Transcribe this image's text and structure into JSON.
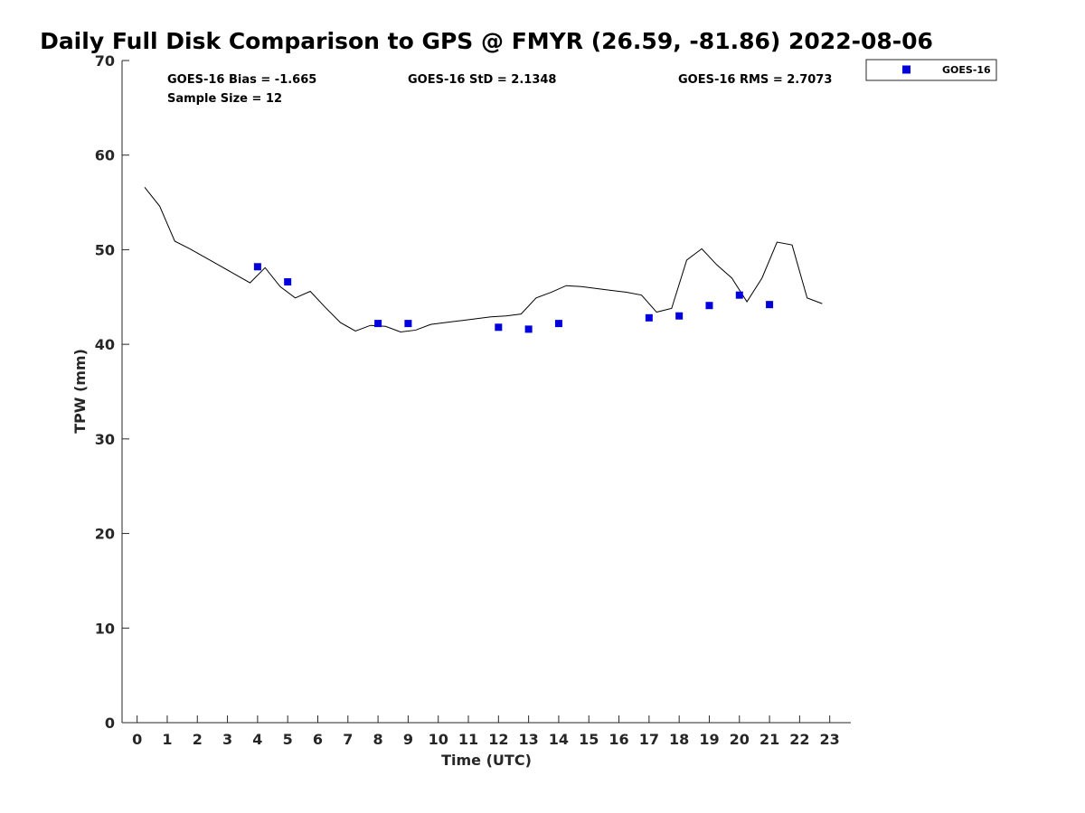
{
  "chart_data": {
    "type": "scatter",
    "title": "Daily Full Disk Comparison to GPS @ FMYR (26.59, -81.86) 2022-08-06",
    "xlabel": "Time (UTC)",
    "ylabel": "TPW (mm)",
    "xlim": [
      -0.5,
      23.7
    ],
    "ylim": [
      0,
      70
    ],
    "x_ticks": [
      0,
      1,
      2,
      3,
      4,
      5,
      6,
      7,
      8,
      9,
      10,
      11,
      12,
      13,
      14,
      15,
      16,
      17,
      18,
      19,
      20,
      21,
      22,
      23
    ],
    "y_ticks": [
      0,
      10,
      20,
      30,
      40,
      50,
      60,
      70
    ],
    "grid": false,
    "legend": {
      "position": "top-right-outside",
      "entries": [
        "GOES-16"
      ]
    },
    "stats": {
      "bias": "GOES-16 Bias = -1.665",
      "std": "GOES-16 StD = 2.1348",
      "rms": "GOES-16 RMS = 2.7073",
      "sample": "Sample Size = 12"
    },
    "series": [
      {
        "name": "GOES-16",
        "type": "scatter",
        "marker": "square",
        "color": "#0000dd",
        "x": [
          4,
          5,
          8,
          9,
          12,
          13,
          14,
          17,
          18,
          19,
          20,
          21
        ],
        "y": [
          48.2,
          46.6,
          42.2,
          42.2,
          41.8,
          41.6,
          42.2,
          42.8,
          43.0,
          44.1,
          45.2,
          44.2
        ]
      },
      {
        "type": "line",
        "color": "#000000",
        "x": [
          0.25,
          0.75,
          1.25,
          1.75,
          2.25,
          2.75,
          3.25,
          3.75,
          4.25,
          4.75,
          5.25,
          5.75,
          6.25,
          6.75,
          7.25,
          7.75,
          8.25,
          8.75,
          9.25,
          9.75,
          10.25,
          10.75,
          11.25,
          11.75,
          12.25,
          12.75,
          13.25,
          13.75,
          14.25,
          14.75,
          15.25,
          15.75,
          16.25,
          16.75,
          17.25,
          17.75,
          18.25,
          18.75,
          19.25,
          19.75,
          20.25,
          20.75,
          21.25,
          21.75,
          22.25,
          22.75
        ],
        "y": [
          56.6,
          54.6,
          50.9,
          50.1,
          49.2,
          48.3,
          47.4,
          46.5,
          48.1,
          46.1,
          44.9,
          45.6,
          43.9,
          42.3,
          41.4,
          42.0,
          41.9,
          41.3,
          41.5,
          42.1,
          42.3,
          42.5,
          42.7,
          42.9,
          43.0,
          43.2,
          44.9,
          45.5,
          46.2,
          46.1,
          45.9,
          45.7,
          45.5,
          45.2,
          43.4,
          43.8,
          48.9,
          50.1,
          48.4,
          47.0,
          44.5,
          47.0,
          50.8,
          50.5,
          44.9,
          44.3
        ]
      }
    ]
  }
}
